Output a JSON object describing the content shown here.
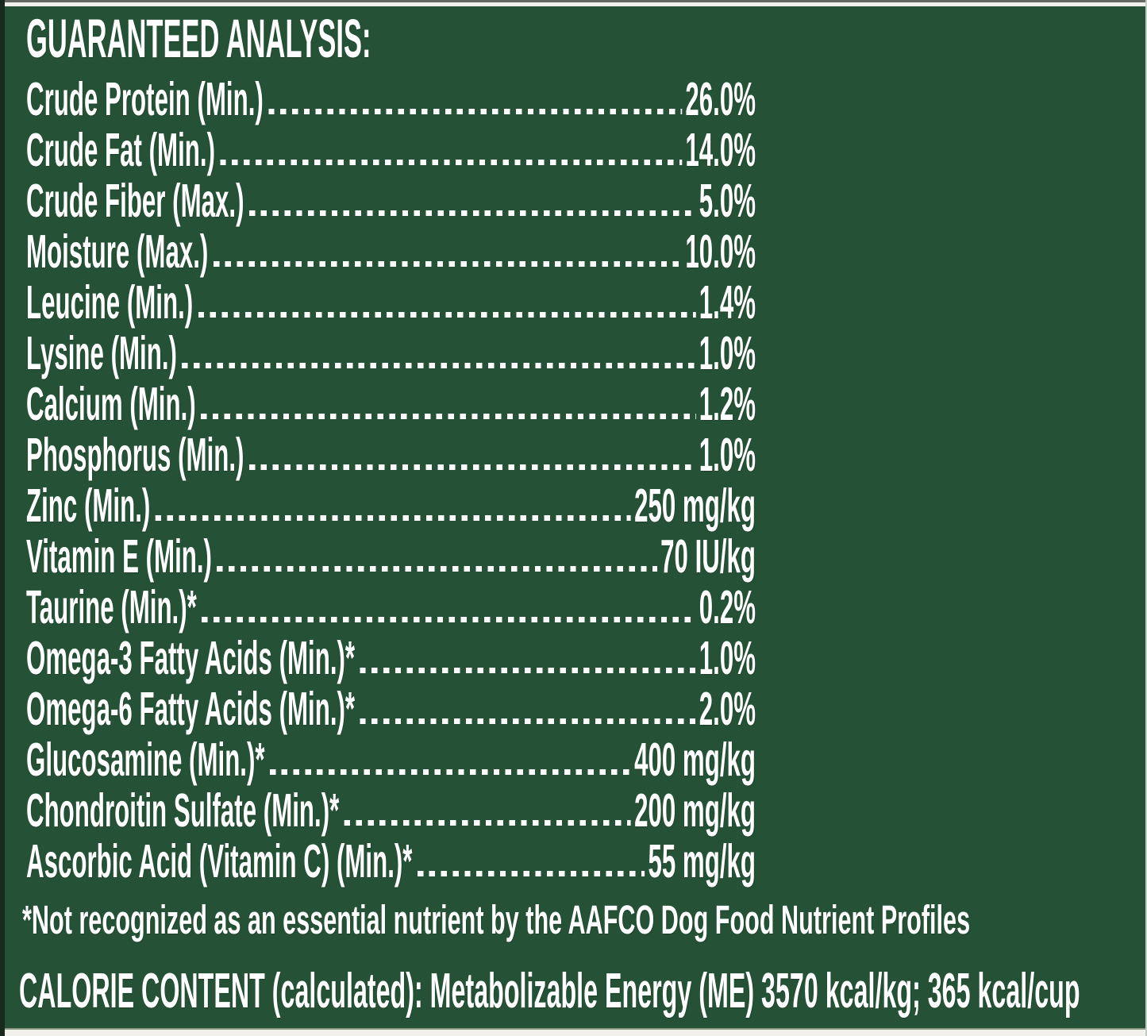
{
  "panel": {
    "background_color": "#255136",
    "text_color": "#ffffff"
  },
  "title": "GUARANTEED ANALYSIS:",
  "analysis": {
    "rows": [
      {
        "label": "Crude Protein (Min.)",
        "value": "26.0%"
      },
      {
        "label": "Crude Fat (Min.)",
        "value": "14.0%"
      },
      {
        "label": "Crude Fiber (Max.)",
        "value": "5.0%"
      },
      {
        "label": "Moisture (Max.)",
        "value": "10.0%"
      },
      {
        "label": "Leucine (Min.)",
        "value": "1.4%"
      },
      {
        "label": "Lysine (Min.)",
        "value": "1.0%"
      },
      {
        "label": "Calcium (Min.)",
        "value": "1.2%"
      },
      {
        "label": "Phosphorus (Min.)",
        "value": "1.0%"
      },
      {
        "label": "Zinc (Min.)",
        "value": "250 mg/kg"
      },
      {
        "label": "Vitamin E (Min.)",
        "value": "70 IU/kg"
      },
      {
        "label": "Taurine (Min.)*",
        "value": "0.2%"
      },
      {
        "label": "Omega-3 Fatty Acids (Min.)*",
        "value": "1.0%"
      },
      {
        "label": "Omega-6 Fatty Acids (Min.)*",
        "value": "2.0%"
      },
      {
        "label": "Glucosamine (Min.)*",
        "value": "400 mg/kg"
      },
      {
        "label": "Chondroitin Sulfate (Min.)*",
        "value": "200 mg/kg"
      },
      {
        "label": "Ascorbic Acid (Vitamin C) (Min.)*",
        "value": "55 mg/kg"
      }
    ]
  },
  "footnote": "*Not recognized as an essential nutrient by the AAFCO Dog Food Nutrient Profiles",
  "calorie_content": "CALORIE CONTENT (calculated): Metabolizable Energy (ME) 3570 kcal/kg; 365 kcal/cup"
}
